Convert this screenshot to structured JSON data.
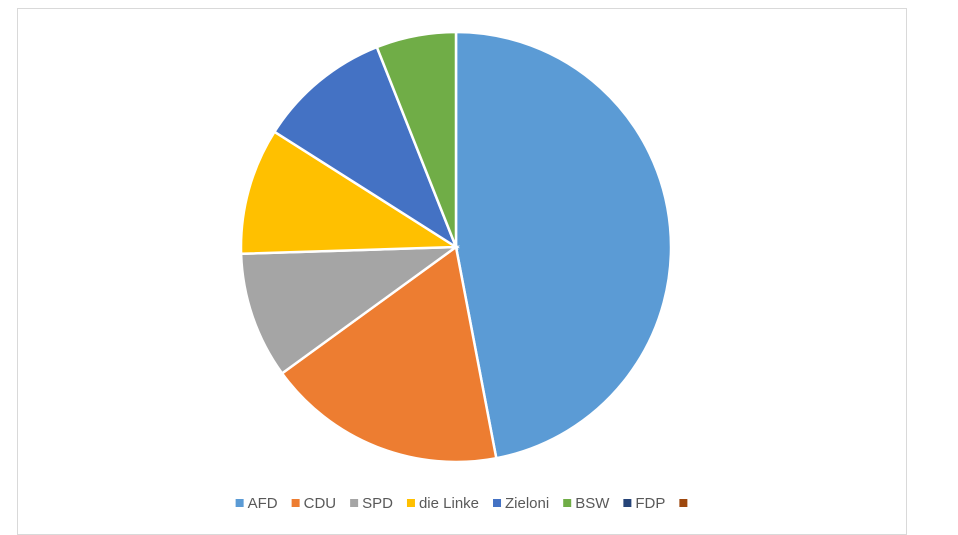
{
  "chart_data": {
    "type": "pie",
    "categories": [
      "AFD",
      "CDU",
      "SPD",
      "die Linke",
      "Zieloni",
      "BSW",
      "FDP",
      null
    ],
    "values": [
      47,
      18,
      9.5,
      9.5,
      10,
      6,
      0,
      0
    ],
    "colors": [
      "#5b9bd5",
      "#ed7d31",
      "#a5a5a5",
      "#ffc000",
      "#4472c4",
      "#70ad47",
      "#264478",
      "#9e480e"
    ],
    "legend": "bottom"
  }
}
